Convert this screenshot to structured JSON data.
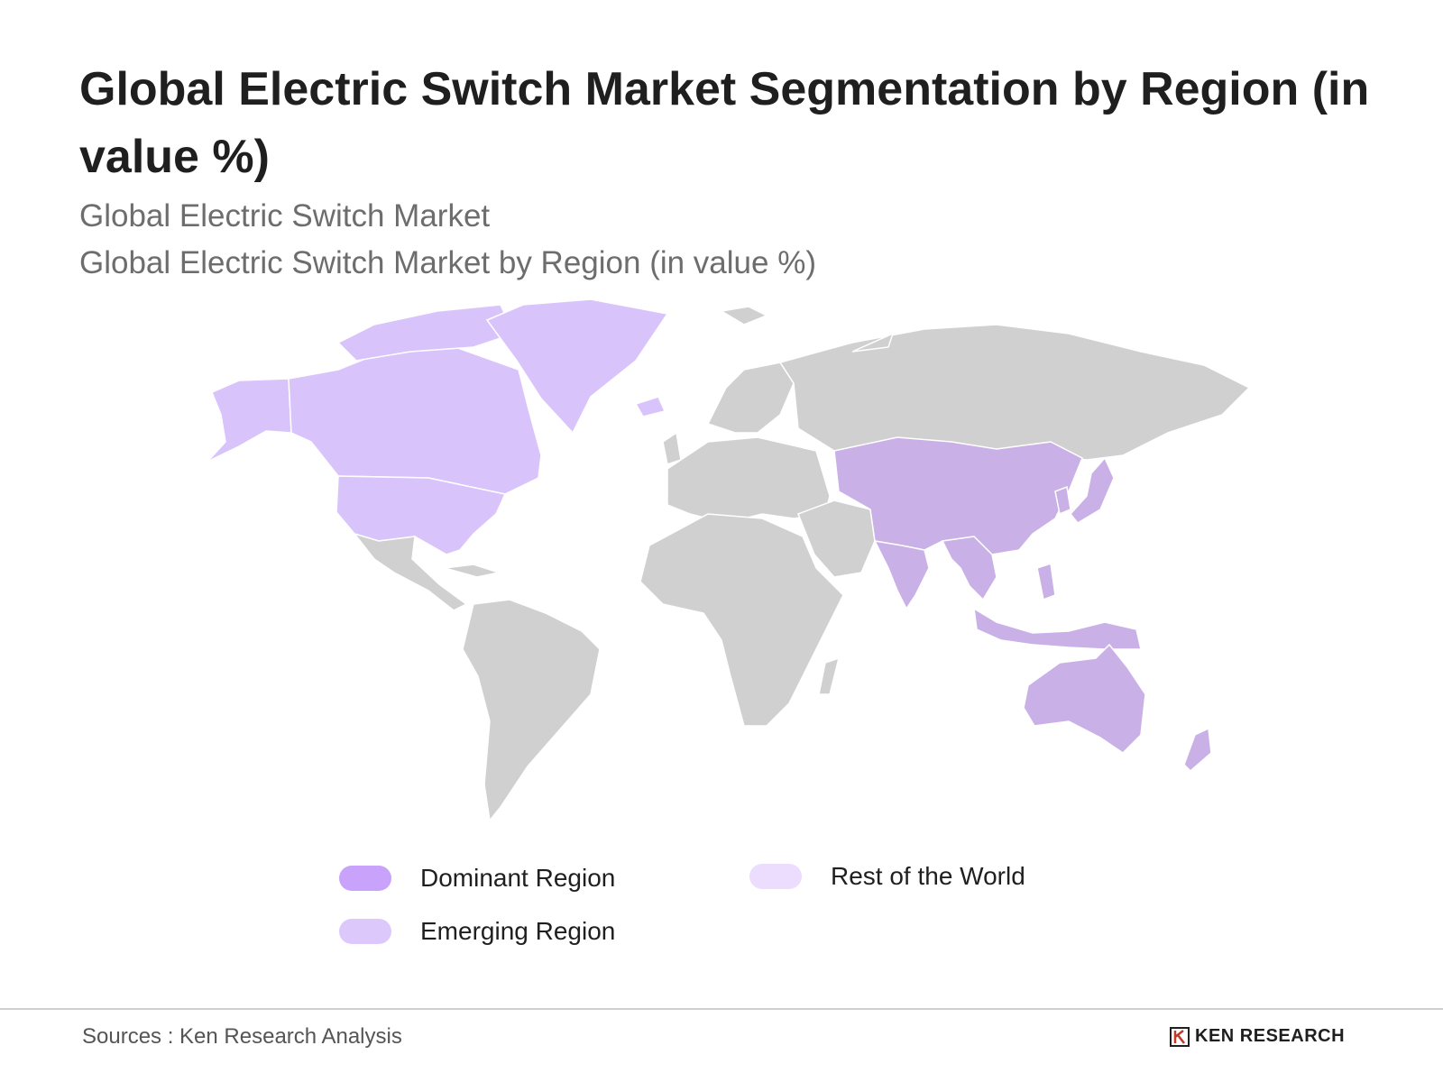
{
  "title": "Global Electric Switch Market Segmentation by Region (in value %)",
  "subtitle_1": "Global Electric Switch Market",
  "subtitle_2": "Global Electric Switch Market by Region (in value %)",
  "legend": {
    "dominant": {
      "label": "Dominant Region",
      "color": "#c9a2fb"
    },
    "emerging": {
      "label": "Emerging Region",
      "color": "#ddc8fb"
    },
    "rest": {
      "label": "Rest of the World",
      "color": "#ecdcfd"
    }
  },
  "map_colors": {
    "north_america": "#d8c4fb",
    "asia_pacific": "#c9b0e6",
    "other": "#d0d0d0"
  },
  "footer": {
    "source": "Sources : Ken Research Analysis",
    "logo_text": "KEN RESEARCH"
  }
}
